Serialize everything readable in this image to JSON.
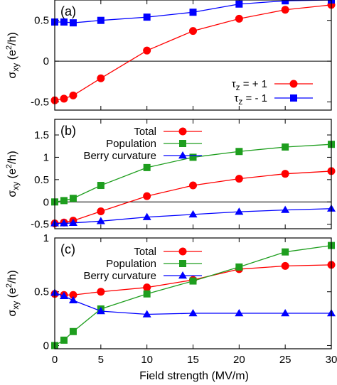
{
  "xlabel": "Field strength (MV/m)",
  "ylabel": "σxy (e²/h)",
  "x_ticks": [
    "0",
    "5",
    "10",
    "15",
    "20",
    "25",
    "30"
  ],
  "chart_data": [
    {
      "type": "line",
      "panel": "(a)",
      "xlim": [
        0,
        30
      ],
      "ylim": [
        -0.6,
        0.75
      ],
      "y_ticks": [
        "-0.5",
        "0",
        "0.5"
      ],
      "y_tick_values": [
        -0.5,
        0,
        0.5
      ],
      "zero_line": true,
      "legend_placement": "bottom-right",
      "series": [
        {
          "name": "τz = + 1",
          "color": "#ff0000",
          "marker": "circle",
          "x": [
            0,
            1,
            2,
            5,
            10,
            15,
            20,
            25,
            30
          ],
          "y": [
            -0.48,
            -0.46,
            -0.42,
            -0.21,
            0.13,
            0.37,
            0.52,
            0.63,
            0.69
          ]
        },
        {
          "name": "τz = - 1",
          "color": "#0000ff",
          "marker": "square",
          "x": [
            0,
            1,
            2,
            5,
            10,
            15,
            20,
            25,
            30
          ],
          "y": [
            0.48,
            0.48,
            0.47,
            0.5,
            0.54,
            0.6,
            0.7,
            0.74,
            0.75
          ]
        }
      ]
    },
    {
      "type": "line",
      "panel": "(b)",
      "xlim": [
        0,
        30
      ],
      "ylim": [
        -0.6,
        1.85
      ],
      "y_ticks": [
        "-0.5",
        "0",
        "0.5",
        "1",
        "1.5"
      ],
      "y_tick_values": [
        -0.5,
        0,
        0.5,
        1,
        1.5
      ],
      "zero_line": true,
      "legend_placement": "top-left",
      "series": [
        {
          "name": "Total",
          "color": "#ff0000",
          "marker": "circle",
          "x": [
            0,
            1,
            2,
            5,
            10,
            15,
            20,
            25,
            30
          ],
          "y": [
            -0.48,
            -0.46,
            -0.42,
            -0.21,
            0.13,
            0.37,
            0.52,
            0.63,
            0.69
          ]
        },
        {
          "name": "Population",
          "color": "#1e9e1e",
          "marker": "square",
          "x": [
            0,
            1,
            2,
            5,
            10,
            15,
            20,
            25,
            30
          ],
          "y": [
            0.0,
            0.03,
            0.08,
            0.37,
            0.77,
            1.0,
            1.13,
            1.23,
            1.29
          ]
        },
        {
          "name": "Berry curvature",
          "color": "#0000ff",
          "marker": "triangle",
          "x": [
            0,
            1,
            2,
            5,
            10,
            15,
            20,
            25,
            30
          ],
          "y": [
            -0.48,
            -0.48,
            -0.47,
            -0.43,
            -0.34,
            -0.28,
            -0.22,
            -0.18,
            -0.15
          ]
        }
      ]
    },
    {
      "type": "line",
      "panel": "(c)",
      "xlim": [
        0,
        30
      ],
      "ylim": [
        -0.03,
        1.0
      ],
      "y_ticks": [
        "0",
        "0.5",
        "1"
      ],
      "y_tick_values": [
        0,
        0.5,
        1
      ],
      "zero_line": false,
      "legend_placement": "top-left",
      "series": [
        {
          "name": "Total",
          "color": "#ff0000",
          "marker": "circle",
          "x": [
            0,
            1,
            2,
            5,
            10,
            15,
            20,
            25,
            30
          ],
          "y": [
            0.48,
            0.47,
            0.47,
            0.5,
            0.54,
            0.61,
            0.71,
            0.74,
            0.75
          ]
        },
        {
          "name": "Population",
          "color": "#1e9e1e",
          "marker": "square",
          "x": [
            0,
            1,
            2,
            5,
            10,
            15,
            20,
            25,
            30
          ],
          "y": [
            0.0,
            0.05,
            0.13,
            0.34,
            0.48,
            0.6,
            0.73,
            0.87,
            0.93
          ]
        },
        {
          "name": "Berry curvature",
          "color": "#0000ff",
          "marker": "triangle",
          "x": [
            0,
            1,
            2,
            5,
            10,
            15,
            20,
            25,
            30
          ],
          "y": [
            0.49,
            0.46,
            0.42,
            0.32,
            0.29,
            0.3,
            0.3,
            0.3,
            0.3
          ]
        }
      ]
    }
  ]
}
